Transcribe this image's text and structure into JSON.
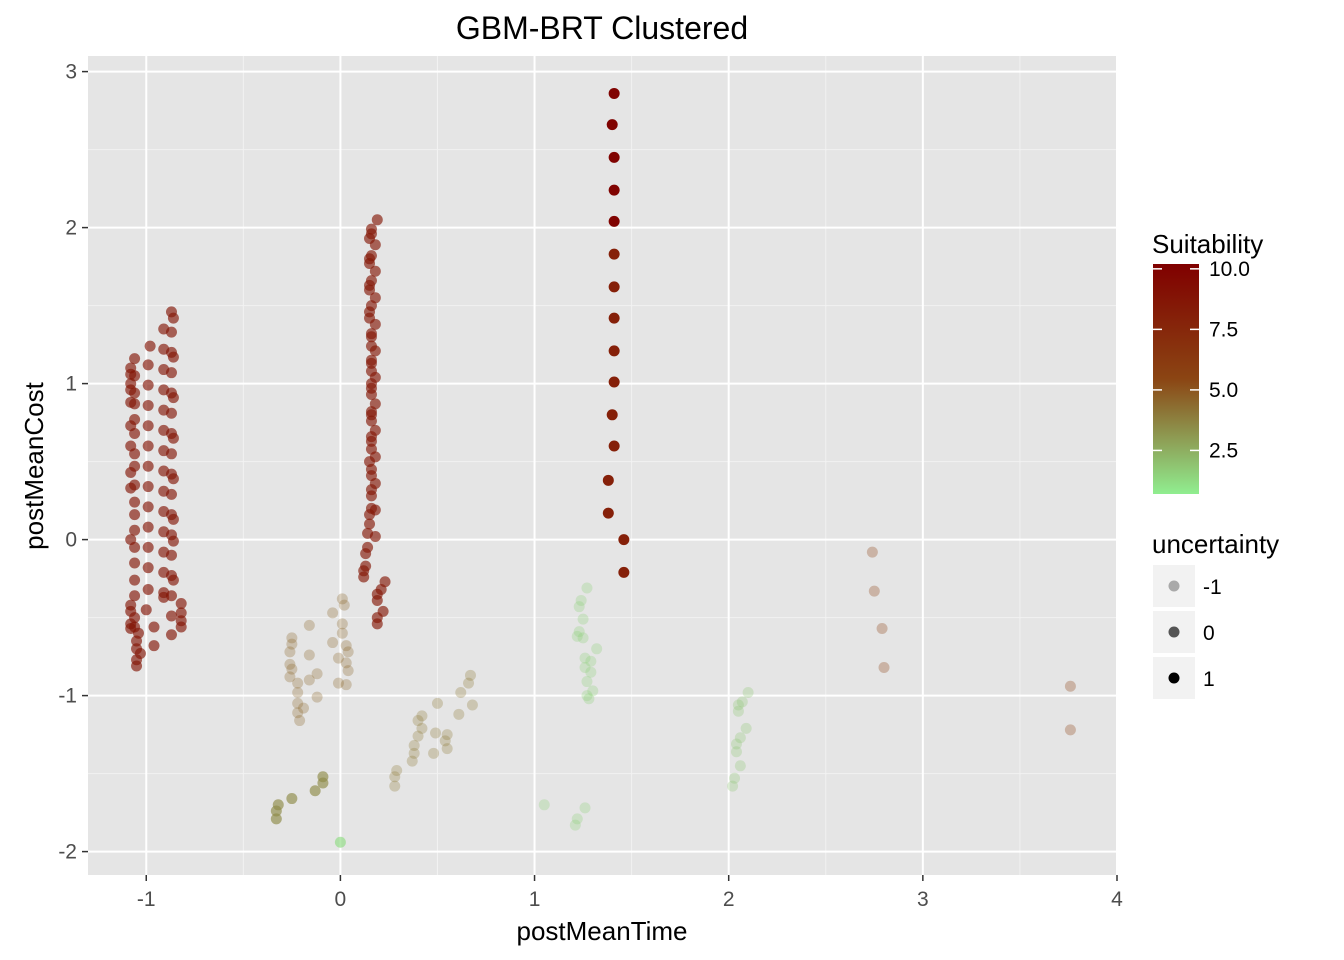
{
  "chart_data": {
    "type": "scatter",
    "title": "GBM-BRT Clustered",
    "xlabel": "postMeanTime",
    "ylabel": "postMeanCost",
    "xlim": [
      -1.3,
      4.0
    ],
    "ylim": [
      -2.15,
      3.1
    ],
    "x_ticks": [
      -1,
      0,
      1,
      2,
      3,
      4
    ],
    "x_tick_labels": [
      "-1",
      "0",
      "1",
      "2",
      "3",
      "4"
    ],
    "y_ticks": [
      -2,
      -1,
      0,
      1,
      2,
      3
    ],
    "y_tick_labels": [
      "-2",
      "-1",
      "0",
      "1",
      "2",
      "3"
    ],
    "grid": true,
    "legend_position": "right",
    "color_legend": {
      "title": "Suitability",
      "range": [
        0.7,
        10.2
      ],
      "ticks": [
        2.5,
        5.0,
        7.5,
        10.0
      ],
      "tick_labels": [
        "2.5",
        "5.0",
        "7.5",
        "10.0"
      ],
      "low_color": "#90ee90",
      "mid_color": "#8b4513",
      "high_color": "#800000"
    },
    "alpha_legend": {
      "title": "uncertainty",
      "levels": [
        "-1",
        "0",
        "1"
      ]
    },
    "series": [
      {
        "points": [
          [
            -1.08,
            -0.57
          ],
          [
            -1.08,
            -0.54
          ],
          [
            -1.08,
            -0.46
          ],
          [
            -1.08,
            -0.42
          ],
          [
            -1.08,
            0.0
          ],
          [
            -1.08,
            0.33
          ],
          [
            -1.08,
            0.43
          ],
          [
            -1.08,
            0.6
          ],
          [
            -1.08,
            0.73
          ],
          [
            -1.08,
            0.88
          ],
          [
            -1.08,
            0.96
          ],
          [
            -1.08,
            1.0
          ],
          [
            -1.08,
            1.06
          ],
          [
            -1.08,
            1.1
          ],
          [
            -1.06,
            -0.56
          ],
          [
            -1.06,
            -0.5
          ],
          [
            -1.06,
            -0.36
          ],
          [
            -1.06,
            -0.26
          ],
          [
            -1.06,
            -0.15
          ],
          [
            -1.06,
            -0.05
          ],
          [
            -1.06,
            0.06
          ],
          [
            -1.06,
            0.16
          ],
          [
            -1.06,
            0.24
          ],
          [
            -1.06,
            0.35
          ],
          [
            -1.06,
            0.47
          ],
          [
            -1.06,
            0.55
          ],
          [
            -1.06,
            0.68
          ],
          [
            -1.06,
            0.77
          ],
          [
            -1.06,
            0.87
          ],
          [
            -1.06,
            0.94
          ],
          [
            -1.06,
            1.05
          ],
          [
            -1.06,
            1.16
          ],
          [
            -1.05,
            -0.81
          ],
          [
            -1.05,
            -0.77
          ],
          [
            -1.05,
            -0.7
          ],
          [
            -1.05,
            -0.65
          ],
          [
            -1.04,
            -0.6
          ],
          [
            -1.03,
            -0.73
          ],
          [
            -0.98,
            1.24
          ],
          [
            -0.99,
            1.12
          ],
          [
            -0.99,
            0.99
          ],
          [
            -0.99,
            0.86
          ],
          [
            -0.99,
            0.73
          ],
          [
            -0.99,
            0.6
          ],
          [
            -0.99,
            0.47
          ],
          [
            -0.99,
            0.34
          ],
          [
            -0.99,
            0.21
          ],
          [
            -0.99,
            0.08
          ],
          [
            -0.99,
            -0.05
          ],
          [
            -0.99,
            -0.18
          ],
          [
            -0.99,
            -0.32
          ],
          [
            -1.0,
            -0.45
          ],
          [
            -0.96,
            -0.56
          ],
          [
            -0.96,
            -0.68
          ],
          [
            -0.91,
            1.35
          ],
          [
            -0.91,
            1.22
          ],
          [
            -0.91,
            1.09
          ],
          [
            -0.91,
            0.96
          ],
          [
            -0.91,
            0.83
          ],
          [
            -0.91,
            0.7
          ],
          [
            -0.91,
            0.57
          ],
          [
            -0.91,
            0.44
          ],
          [
            -0.91,
            0.31
          ],
          [
            -0.91,
            0.18
          ],
          [
            -0.91,
            0.05
          ],
          [
            -0.91,
            -0.08
          ],
          [
            -0.91,
            -0.21
          ],
          [
            -0.91,
            -0.34
          ],
          [
            -0.91,
            -0.37
          ],
          [
            -0.87,
            1.46
          ],
          [
            -0.87,
            1.33
          ],
          [
            -0.87,
            1.2
          ],
          [
            -0.87,
            1.07
          ],
          [
            -0.87,
            0.94
          ],
          [
            -0.87,
            0.81
          ],
          [
            -0.87,
            0.68
          ],
          [
            -0.87,
            0.55
          ],
          [
            -0.87,
            0.42
          ],
          [
            -0.87,
            0.29
          ],
          [
            -0.87,
            0.16
          ],
          [
            -0.87,
            0.03
          ],
          [
            -0.87,
            -0.1
          ],
          [
            -0.87,
            -0.23
          ],
          [
            -0.87,
            -0.36
          ],
          [
            -0.87,
            -0.49
          ],
          [
            -0.87,
            -0.61
          ],
          [
            -0.86,
            1.42
          ],
          [
            -0.86,
            1.17
          ],
          [
            -0.86,
            0.91
          ],
          [
            -0.86,
            0.65
          ],
          [
            -0.86,
            0.39
          ],
          [
            -0.86,
            0.13
          ],
          [
            -0.86,
            -0.01
          ],
          [
            -0.86,
            -0.26
          ],
          [
            -0.82,
            -0.41
          ],
          [
            -0.82,
            -0.47
          ],
          [
            -0.82,
            -0.52
          ],
          [
            -0.82,
            -0.56
          ]
        ],
        "suitability": 8.7,
        "uncertainty": 0
      },
      {
        "points": [
          [
            0.12,
            -0.24
          ],
          [
            0.12,
            -0.2
          ],
          [
            0.13,
            -0.17
          ],
          [
            0.13,
            -0.09
          ],
          [
            0.14,
            -0.05
          ],
          [
            0.14,
            0.04
          ],
          [
            0.15,
            0.1
          ],
          [
            0.15,
            0.16
          ],
          [
            0.16,
            0.2
          ],
          [
            0.16,
            0.28
          ],
          [
            0.16,
            0.32
          ],
          [
            0.16,
            0.41
          ],
          [
            0.16,
            0.45
          ],
          [
            0.15,
            0.5
          ],
          [
            0.16,
            0.58
          ],
          [
            0.16,
            0.63
          ],
          [
            0.16,
            0.66
          ],
          [
            0.16,
            0.76
          ],
          [
            0.16,
            0.8
          ],
          [
            0.16,
            0.82
          ],
          [
            0.16,
            0.93
          ],
          [
            0.16,
            0.97
          ],
          [
            0.16,
            1.0
          ],
          [
            0.16,
            1.08
          ],
          [
            0.16,
            1.13
          ],
          [
            0.16,
            1.15
          ],
          [
            0.16,
            1.24
          ],
          [
            0.16,
            1.3
          ],
          [
            0.16,
            1.32
          ],
          [
            0.15,
            1.42
          ],
          [
            0.15,
            1.46
          ],
          [
            0.16,
            1.5
          ],
          [
            0.15,
            1.6
          ],
          [
            0.15,
            1.63
          ],
          [
            0.16,
            1.66
          ],
          [
            0.15,
            1.77
          ],
          [
            0.15,
            1.8
          ],
          [
            0.16,
            1.82
          ],
          [
            0.15,
            1.93
          ],
          [
            0.16,
            1.96
          ],
          [
            0.16,
            1.99
          ],
          [
            0.19,
            2.05
          ],
          [
            0.18,
            1.89
          ],
          [
            0.18,
            1.72
          ],
          [
            0.18,
            1.55
          ],
          [
            0.18,
            1.38
          ],
          [
            0.18,
            1.21
          ],
          [
            0.18,
            1.04
          ],
          [
            0.18,
            0.87
          ],
          [
            0.18,
            0.7
          ],
          [
            0.18,
            0.53
          ],
          [
            0.18,
            0.36
          ],
          [
            0.18,
            0.19
          ],
          [
            0.18,
            0.02
          ],
          [
            0.19,
            -0.35
          ],
          [
            0.19,
            -0.39
          ],
          [
            0.19,
            -0.5
          ],
          [
            0.19,
            -0.54
          ],
          [
            0.21,
            -0.32
          ],
          [
            0.22,
            -0.46
          ],
          [
            0.23,
            -0.27
          ]
        ],
        "suitability": 8.5,
        "uncertainty": 0
      },
      {
        "points": [
          [
            1.41,
            2.86
          ],
          [
            1.4,
            2.66
          ],
          [
            1.41,
            2.45
          ],
          [
            1.41,
            2.24
          ],
          [
            1.41,
            2.04
          ]
        ],
        "suitability": 10.0,
        "uncertainty": 1
      },
      {
        "points": [
          [
            1.41,
            1.83
          ],
          [
            1.41,
            1.62
          ],
          [
            1.41,
            1.42
          ],
          [
            1.41,
            1.21
          ],
          [
            1.41,
            1.01
          ],
          [
            1.4,
            0.8
          ],
          [
            1.41,
            0.6
          ],
          [
            1.38,
            0.38
          ],
          [
            1.38,
            0.17
          ],
          [
            1.46,
            0.0
          ],
          [
            1.46,
            -0.21
          ]
        ],
        "suitability": 8.0,
        "uncertainty": 1
      },
      {
        "points": [
          [
            -0.25,
            -0.63
          ],
          [
            -0.25,
            -0.67
          ],
          [
            -0.26,
            -0.72
          ],
          [
            -0.26,
            -0.8
          ],
          [
            -0.25,
            -0.83
          ],
          [
            -0.26,
            -0.88
          ],
          [
            -0.22,
            -0.92
          ],
          [
            -0.22,
            -0.98
          ],
          [
            -0.22,
            -1.05
          ],
          [
            -0.22,
            -1.11
          ],
          [
            -0.21,
            -1.16
          ],
          [
            -0.19,
            -1.08
          ],
          [
            -0.16,
            -0.55
          ],
          [
            -0.16,
            -0.74
          ],
          [
            -0.16,
            -0.9
          ],
          [
            -0.12,
            -0.86
          ],
          [
            -0.12,
            -1.01
          ],
          [
            -0.04,
            -0.47
          ],
          [
            -0.04,
            -0.66
          ],
          [
            -0.01,
            -0.76
          ],
          [
            -0.01,
            -0.92
          ],
          [
            0.01,
            -0.54
          ],
          [
            0.01,
            -0.6
          ],
          [
            0.01,
            -0.38
          ],
          [
            0.02,
            -0.42
          ],
          [
            0.03,
            -0.79
          ],
          [
            0.03,
            -0.93
          ],
          [
            0.03,
            -0.68
          ],
          [
            0.04,
            -0.84
          ],
          [
            0.04,
            -0.72
          ]
        ],
        "suitability": 4.5,
        "uncertainty": -1
      },
      {
        "points": [
          [
            -0.33,
            -1.74
          ],
          [
            -0.33,
            -1.79
          ],
          [
            -0.32,
            -1.7
          ],
          [
            -0.25,
            -1.66
          ],
          [
            -0.13,
            -1.61
          ],
          [
            -0.09,
            -1.52
          ],
          [
            -0.09,
            -1.56
          ]
        ],
        "suitability": 3.5,
        "uncertainty": 0
      },
      {
        "points": [
          [
            0.0,
            -1.94
          ]
        ],
        "suitability": 1.2,
        "uncertainty": 0
      },
      {
        "points": [
          [
            0.28,
            -1.58
          ],
          [
            0.28,
            -1.52
          ],
          [
            0.29,
            -1.48
          ],
          [
            0.37,
            -1.42
          ],
          [
            0.38,
            -1.37
          ],
          [
            0.38,
            -1.32
          ],
          [
            0.4,
            -1.26
          ],
          [
            0.4,
            -1.16
          ],
          [
            0.42,
            -1.21
          ],
          [
            0.42,
            -1.13
          ],
          [
            0.48,
            -1.37
          ],
          [
            0.49,
            -1.24
          ],
          [
            0.5,
            -1.05
          ],
          [
            0.54,
            -1.29
          ],
          [
            0.55,
            -1.34
          ],
          [
            0.55,
            -1.25
          ],
          [
            0.61,
            -1.12
          ],
          [
            0.62,
            -0.98
          ],
          [
            0.66,
            -0.92
          ],
          [
            0.67,
            -0.87
          ],
          [
            0.68,
            -1.06
          ]
        ],
        "suitability": 4.0,
        "uncertainty": -1
      },
      {
        "points": [
          [
            1.22,
            -0.62
          ],
          [
            1.23,
            -0.59
          ],
          [
            1.23,
            -0.43
          ],
          [
            1.24,
            -0.39
          ],
          [
            1.25,
            -0.63
          ],
          [
            1.25,
            -0.51
          ],
          [
            1.26,
            -0.76
          ],
          [
            1.26,
            -0.82
          ],
          [
            1.27,
            -0.31
          ],
          [
            1.27,
            -0.91
          ],
          [
            1.27,
            -1.0
          ],
          [
            1.28,
            -1.02
          ],
          [
            1.29,
            -0.78
          ],
          [
            1.29,
            -0.85
          ],
          [
            1.3,
            -0.97
          ],
          [
            1.32,
            -0.7
          ]
        ],
        "suitability": 1.5,
        "uncertainty": -1
      },
      {
        "points": [
          [
            1.05,
            -1.7
          ],
          [
            1.21,
            -1.83
          ],
          [
            1.22,
            -1.79
          ],
          [
            1.26,
            -1.72
          ]
        ],
        "suitability": 1.5,
        "uncertainty": -1
      },
      {
        "points": [
          [
            2.02,
            -1.58
          ],
          [
            2.03,
            -1.53
          ],
          [
            2.04,
            -1.36
          ],
          [
            2.04,
            -1.31
          ],
          [
            2.05,
            -1.1
          ],
          [
            2.05,
            -1.06
          ],
          [
            2.06,
            -1.27
          ],
          [
            2.06,
            -1.45
          ],
          [
            2.07,
            -1.04
          ],
          [
            2.09,
            -1.21
          ],
          [
            2.1,
            -0.98
          ]
        ],
        "suitability": 1.8,
        "uncertainty": -1
      },
      {
        "points": [
          [
            2.74,
            -0.08
          ],
          [
            2.75,
            -0.33
          ],
          [
            2.79,
            -0.57
          ],
          [
            2.8,
            -0.82
          ],
          [
            3.76,
            -0.94
          ],
          [
            3.76,
            -1.22
          ]
        ],
        "suitability": 5.8,
        "uncertainty": -1
      }
    ]
  }
}
